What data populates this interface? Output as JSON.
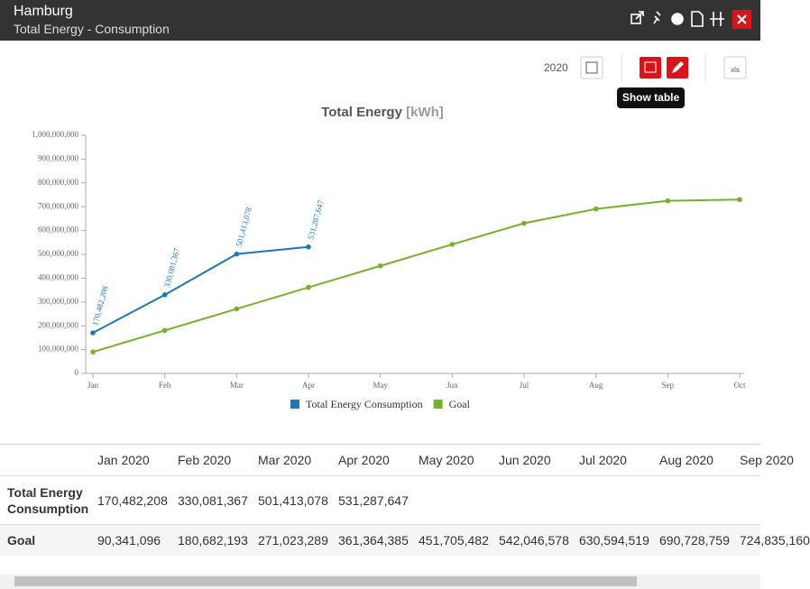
{
  "header": {
    "title": "Hamburg",
    "subtitle": "Total Energy - Consumption"
  },
  "toolbar": {
    "year": "2020",
    "tooltip": "Show table",
    "export_label": "xls"
  },
  "chart_data": {
    "type": "line",
    "title": "Total Energy",
    "title_unit": "[kWh]",
    "categories": [
      "Jan",
      "Feb",
      "Mar",
      "Apr",
      "May",
      "Jun",
      "Jul",
      "Aug",
      "Sep",
      "Oct"
    ],
    "series": [
      {
        "name": "Total Energy Consumption",
        "color": "#1f78b4",
        "values": [
          170482208,
          330081367,
          501413078,
          531287647,
          null,
          null,
          null,
          null,
          null,
          null
        ],
        "value_labels": [
          "170,482,208",
          "330,081,367",
          "501,413,078",
          "531,287,647",
          null,
          null,
          null,
          null,
          null,
          null
        ]
      },
      {
        "name": "Goal",
        "color": "#77b02e",
        "values": [
          90341096,
          180682193,
          271023289,
          361364385,
          451705482,
          542046578,
          630594519,
          690728759,
          724835160,
          730000000
        ]
      }
    ],
    "ylim": [
      0,
      1000000000
    ],
    "yticks": [
      0,
      {
        "value": 100000000,
        "label": "100,000,000"
      },
      {
        "value": 200000000,
        "label": "200,000,000"
      },
      {
        "value": 300000000,
        "label": "300,000,000"
      },
      {
        "value": 400000000,
        "label": "400,000,000"
      },
      {
        "value": 500000000,
        "label": "500,000,000"
      },
      {
        "value": 600000000,
        "label": "600,000,000"
      },
      {
        "value": 700000000,
        "label": "700,000,000"
      },
      {
        "value": 800000000,
        "label": "800,000,000"
      },
      {
        "value": 900000000,
        "label": "900,000,000"
      },
      {
        "value": 1000000000,
        "label": "1,000,000,000"
      }
    ],
    "legend": "bottom"
  },
  "table": {
    "columns": [
      "Jan 2020",
      "Feb 2020",
      "Mar 2020",
      "Apr 2020",
      "May 2020",
      "Jun 2020",
      "Jul 2020",
      "Aug 2020",
      "Sep 2020"
    ],
    "rows": [
      {
        "label": "Total Energy Consumption",
        "cells": [
          "170,482,208",
          "330,081,367",
          "501,413,078",
          "531,287,647"
        ]
      },
      {
        "label": "Goal",
        "cells": [
          "90,341,096",
          "180,682,193",
          "271,023,289",
          "361,364,385",
          "451,705,482",
          "542,046,578",
          "630,594,519",
          "690,728,759",
          "724,835,160"
        ]
      }
    ]
  }
}
